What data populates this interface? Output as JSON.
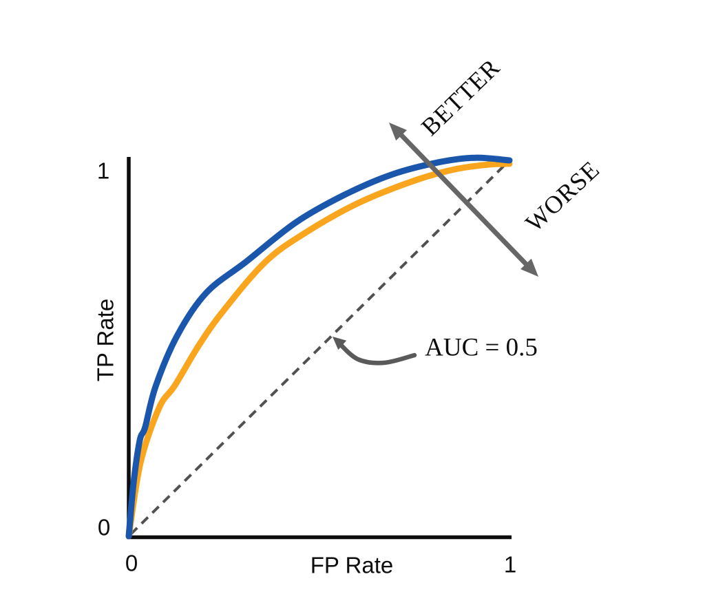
{
  "colors": {
    "axis": "#0d0d0d",
    "blue_curve": "#1a56ab",
    "orange_curve": "#f9a51d",
    "arrow_gray": "#666666",
    "dash_gray": "#515151",
    "annotation_arrow_gray": "#5a5a5a",
    "text": "#0d0d0d",
    "background": "#ffffff"
  },
  "chart_data": {
    "type": "line",
    "title": "",
    "xlabel": "FP Rate",
    "ylabel": "TP Rate",
    "xlim": [
      0,
      1
    ],
    "ylim": [
      0,
      1
    ],
    "x_tick_labels": [
      "0",
      "1"
    ],
    "y_tick_labels": [
      "0",
      "1"
    ],
    "grid": false,
    "legend": "none",
    "series": [
      {
        "name": "roc-curve-good",
        "color": "#1a56ab",
        "style": "solid",
        "points": [
          [
            0,
            0
          ],
          [
            0.013,
            0.145
          ],
          [
            0.029,
            0.255
          ],
          [
            0.043,
            0.29
          ],
          [
            0.071,
            0.4
          ],
          [
            0.128,
            0.535
          ],
          [
            0.204,
            0.648
          ],
          [
            0.309,
            0.731
          ],
          [
            0.439,
            0.835
          ],
          [
            0.566,
            0.908
          ],
          [
            0.693,
            0.963
          ],
          [
            0.819,
            0.996
          ],
          [
            0.91,
            1.007
          ],
          [
            1,
            1.0
          ]
        ]
      },
      {
        "name": "roc-curve-fair",
        "color": "#f9a51d",
        "style": "solid",
        "points": [
          [
            0,
            0
          ],
          [
            0.031,
            0.196
          ],
          [
            0.08,
            0.342
          ],
          [
            0.121,
            0.401
          ],
          [
            0.186,
            0.511
          ],
          [
            0.251,
            0.603
          ],
          [
            0.36,
            0.731
          ],
          [
            0.465,
            0.808
          ],
          [
            0.602,
            0.886
          ],
          [
            0.747,
            0.945
          ],
          [
            0.855,
            0.976
          ],
          [
            0.946,
            0.989
          ],
          [
            1,
            0.991
          ]
        ]
      },
      {
        "name": "chance-diagonal",
        "color": "#515151",
        "style": "dashed",
        "points": [
          [
            0,
            0
          ],
          [
            1,
            1
          ]
        ]
      }
    ],
    "annotations": [
      {
        "text": "BETTER",
        "meaning": "direction above diagonal is better"
      },
      {
        "text": "WORSE",
        "meaning": "direction below diagonal is worse"
      },
      {
        "text": "AUC = 0.5",
        "meaning": "area under the chance diagonal"
      }
    ]
  }
}
